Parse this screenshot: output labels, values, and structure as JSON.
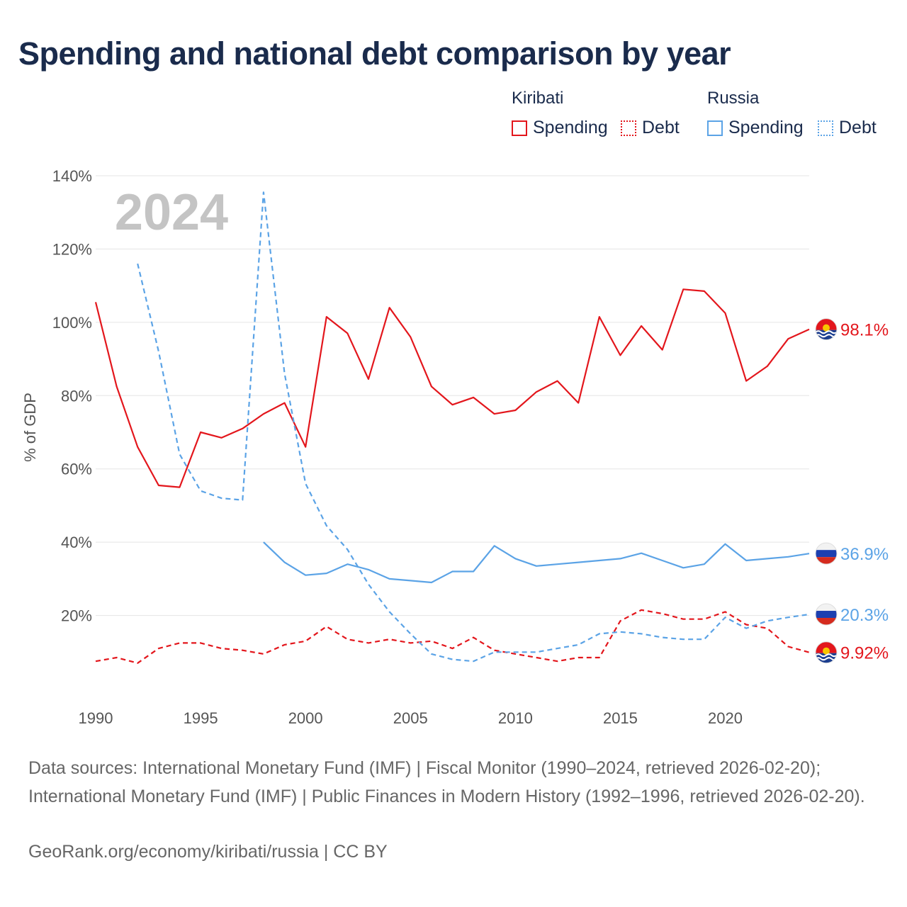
{
  "title": "Spending and national debt comparison by year",
  "legend": {
    "groups": [
      {
        "name": "Kiribati",
        "items": [
          {
            "label": "Spending",
            "style": "solid"
          },
          {
            "label": "Debt",
            "style": "dotted"
          }
        ]
      },
      {
        "name": "Russia",
        "items": [
          {
            "label": "Spending",
            "style": "solid"
          },
          {
            "label": "Debt",
            "style": "dotted"
          }
        ]
      }
    ]
  },
  "colors": {
    "kiribati": "#e3161c",
    "russia": "#5ba3e6",
    "grid": "#e5e5e5",
    "axis_text": "#555555",
    "watermark": "#c4c4c4"
  },
  "watermark_year": "2024",
  "footer": {
    "sources": "Data sources: International Monetary Fund (IMF) | Fiscal Monitor (1990–2024, retrieved 2026-02-20); International Monetary Fund (IMF) | Public Finances in Modern History (1992–1996, retrieved 2026-02-20).",
    "credit": "GeoRank.org/economy/kiribati/russia | CC BY"
  },
  "chart_data": {
    "type": "line",
    "title": "Spending and national debt comparison by year",
    "xlabel": "",
    "ylabel": "% of GDP",
    "xlim": [
      1990,
      2024
    ],
    "ylim": [
      0,
      140
    ],
    "x_ticks": [
      1990,
      1995,
      2000,
      2005,
      2010,
      2015,
      2020
    ],
    "y_ticks": [
      20,
      40,
      60,
      80,
      100,
      120,
      140
    ],
    "y_tick_labels": [
      "20%",
      "40%",
      "60%",
      "80%",
      "100%",
      "120%",
      "140%"
    ],
    "grid": true,
    "series": [
      {
        "name": "Kiribati Spending",
        "country": "Kiribati",
        "metric": "Spending",
        "color": "#e3161c",
        "dash": "solid",
        "end_label": "98.1%",
        "points": [
          [
            1990,
            105.5
          ],
          [
            1991,
            82.5
          ],
          [
            1992,
            66
          ],
          [
            1993,
            55.5
          ],
          [
            1994,
            55
          ],
          [
            1995,
            70
          ],
          [
            1996,
            68.5
          ],
          [
            1997,
            71
          ],
          [
            1998,
            75
          ],
          [
            1999,
            78
          ],
          [
            2000,
            66
          ],
          [
            2001,
            101.5
          ],
          [
            2002,
            97
          ],
          [
            2003,
            84.5
          ],
          [
            2004,
            104
          ],
          [
            2005,
            96
          ],
          [
            2006,
            82.5
          ],
          [
            2007,
            77.5
          ],
          [
            2008,
            79.5
          ],
          [
            2009,
            75
          ],
          [
            2010,
            76
          ],
          [
            2011,
            81
          ],
          [
            2012,
            84
          ],
          [
            2013,
            78
          ],
          [
            2014,
            101.5
          ],
          [
            2015,
            91
          ],
          [
            2016,
            99
          ],
          [
            2017,
            92.5
          ],
          [
            2018,
            109
          ],
          [
            2019,
            108.5
          ],
          [
            2020,
            102.5
          ],
          [
            2021,
            84
          ],
          [
            2022,
            88
          ],
          [
            2023,
            95.5
          ],
          [
            2024,
            98.1
          ]
        ]
      },
      {
        "name": "Kiribati Debt",
        "country": "Kiribati",
        "metric": "Debt",
        "color": "#e3161c",
        "dash": "dashed",
        "end_label": "9.92%",
        "points": [
          [
            1990,
            7.5
          ],
          [
            1991,
            8.5
          ],
          [
            1992,
            7
          ],
          [
            1993,
            11
          ],
          [
            1994,
            12.5
          ],
          [
            1995,
            12.5
          ],
          [
            1996,
            11
          ],
          [
            1997,
            10.5
          ],
          [
            1998,
            9.5
          ],
          [
            1999,
            12
          ],
          [
            2000,
            13
          ],
          [
            2001,
            17
          ],
          [
            2002,
            13.5
          ],
          [
            2003,
            12.5
          ],
          [
            2004,
            13.5
          ],
          [
            2005,
            12.5
          ],
          [
            2006,
            13
          ],
          [
            2007,
            11
          ],
          [
            2008,
            14
          ],
          [
            2009,
            10.5
          ],
          [
            2010,
            9.5
          ],
          [
            2011,
            8.5
          ],
          [
            2012,
            7.5
          ],
          [
            2013,
            8.5
          ],
          [
            2014,
            8.5
          ],
          [
            2015,
            18.5
          ],
          [
            2016,
            21.5
          ],
          [
            2017,
            20.5
          ],
          [
            2018,
            19
          ],
          [
            2019,
            19
          ],
          [
            2020,
            21
          ],
          [
            2021,
            17.5
          ],
          [
            2022,
            16.5
          ],
          [
            2023,
            11.5
          ],
          [
            2024,
            9.92
          ]
        ]
      },
      {
        "name": "Russia Spending",
        "country": "Russia",
        "metric": "Spending",
        "color": "#5ba3e6",
        "dash": "solid",
        "end_label": "36.9%",
        "points": [
          [
            1998,
            40
          ],
          [
            1999,
            34.5
          ],
          [
            2000,
            31
          ],
          [
            2001,
            31.5
          ],
          [
            2002,
            34
          ],
          [
            2003,
            32.5
          ],
          [
            2004,
            30
          ],
          [
            2005,
            29.5
          ],
          [
            2006,
            29
          ],
          [
            2007,
            32
          ],
          [
            2008,
            32
          ],
          [
            2009,
            39
          ],
          [
            2010,
            35.5
          ],
          [
            2011,
            33.5
          ],
          [
            2012,
            34
          ],
          [
            2013,
            34.5
          ],
          [
            2014,
            35
          ],
          [
            2015,
            35.5
          ],
          [
            2016,
            37
          ],
          [
            2017,
            35
          ],
          [
            2018,
            33
          ],
          [
            2019,
            34
          ],
          [
            2020,
            39.5
          ],
          [
            2021,
            35
          ],
          [
            2022,
            35.5
          ],
          [
            2023,
            36
          ],
          [
            2024,
            36.9
          ]
        ]
      },
      {
        "name": "Russia Debt",
        "country": "Russia",
        "metric": "Debt",
        "color": "#5ba3e6",
        "dash": "dashed",
        "end_label": "20.3%",
        "points": [
          [
            1992,
            116
          ],
          [
            1993,
            92
          ],
          [
            1994,
            64
          ],
          [
            1995,
            54
          ],
          [
            1996,
            52
          ],
          [
            1997,
            51.5
          ],
          [
            1998,
            135.5
          ],
          [
            1999,
            86
          ],
          [
            2000,
            56
          ],
          [
            2001,
            44.5
          ],
          [
            2002,
            38
          ],
          [
            2003,
            28.5
          ],
          [
            2004,
            21
          ],
          [
            2005,
            15
          ],
          [
            2006,
            9.5
          ],
          [
            2007,
            8
          ],
          [
            2008,
            7.5
          ],
          [
            2009,
            10
          ],
          [
            2010,
            10
          ],
          [
            2011,
            10
          ],
          [
            2012,
            11
          ],
          [
            2013,
            12
          ],
          [
            2014,
            15
          ],
          [
            2015,
            15.5
          ],
          [
            2016,
            15
          ],
          [
            2017,
            14
          ],
          [
            2018,
            13.5
          ],
          [
            2019,
            13.5
          ],
          [
            2020,
            19.5
          ],
          [
            2021,
            16.5
          ],
          [
            2022,
            18.5
          ],
          [
            2023,
            19.5
          ],
          [
            2024,
            20.3
          ]
        ]
      }
    ]
  }
}
